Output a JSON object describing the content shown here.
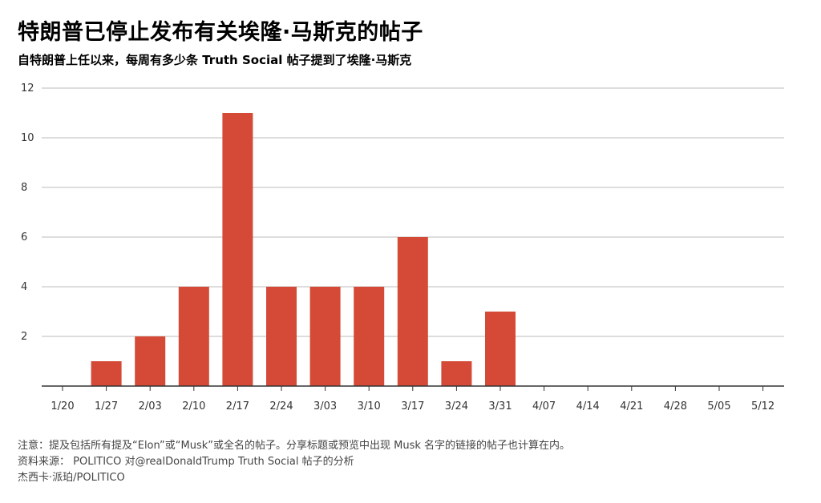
{
  "header": {
    "title": "特朗普已停止发布有关埃隆·马斯克的帖子",
    "subtitle": "自特朗普上任以来，每周有多少条 Truth Social 帖子提到了埃隆·马斯克"
  },
  "footer": {
    "note": "注意：提及包括所有提及“Elon”或“Musk”或全名的帖子。分享标题或预览中出现 Musk 名字的链接的帖子也计算在内。",
    "source": "资料来源： POLITICO 对@realDonaldTrump Truth Social 帖子的分析",
    "credit": "杰西卡·派珀/POLITICO"
  },
  "chart_data": {
    "type": "bar",
    "title": "特朗普已停止发布有关埃隆·马斯克的帖子",
    "subtitle": "自特朗普上任以来，每周有多少条 Truth Social 帖子提到了埃隆·马斯克",
    "categories": [
      "1/20",
      "1/27",
      "2/03",
      "2/10",
      "2/17",
      "2/24",
      "3/03",
      "3/10",
      "3/17",
      "3/24",
      "3/31",
      "4/07",
      "4/14",
      "4/21",
      "4/28",
      "5/05",
      "5/12"
    ],
    "values": [
      0,
      1,
      2,
      4,
      11,
      4,
      4,
      4,
      6,
      1,
      3,
      0,
      0,
      0,
      0,
      0,
      0
    ],
    "yticks": [
      2,
      4,
      6,
      8,
      10,
      12
    ],
    "ylim": [
      0,
      12
    ],
    "grid": true,
    "legend": "none",
    "bar_color": "#d44a36",
    "grid_color": "#bbbbbb",
    "axis_color": "#333333"
  }
}
